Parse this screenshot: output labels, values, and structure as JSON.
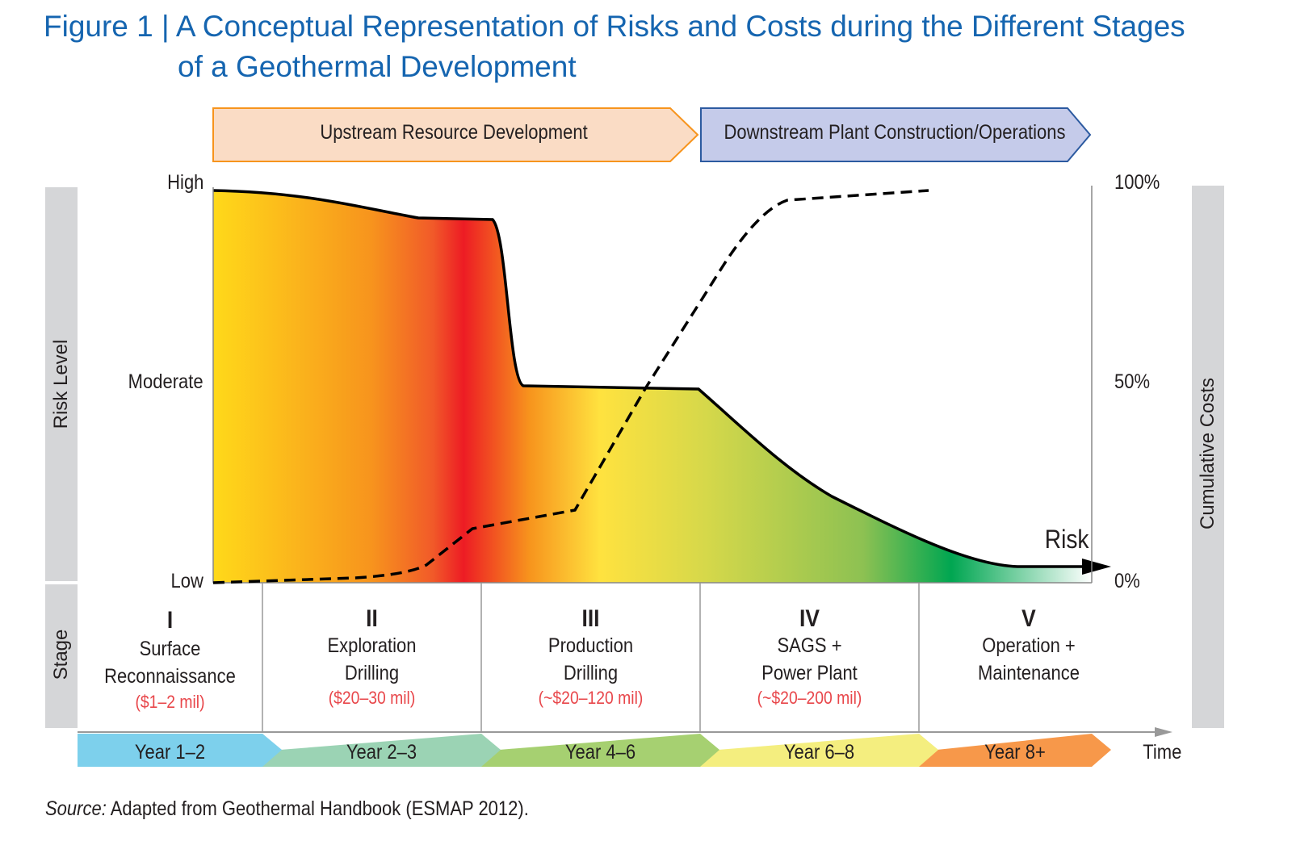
{
  "title": {
    "line1": "Figure 1 | A Conceptual Representation of Risks and Costs during the Different Stages",
    "line2": "of a Geothermal Development"
  },
  "phases": [
    {
      "label": "Upstream Resource Development",
      "fill": "#fadcc5",
      "stroke": "#f7941d"
    },
    {
      "label": "Downstream Plant Construction/Operations",
      "fill": "#c5cbea",
      "stroke": "#2c5aa0"
    }
  ],
  "left_axis": {
    "title": "Risk Level",
    "ticks": [
      "High",
      "Moderate",
      "Low"
    ]
  },
  "right_axis": {
    "title": "Cumulative Costs",
    "ticks": [
      "100%",
      "50%",
      "0%"
    ]
  },
  "risk_label": "Risk",
  "stage_label": "Stage",
  "stages": [
    {
      "numeral": "I",
      "name1": "Surface",
      "name2": "Reconnaissance",
      "cost": "($1–2 mil)"
    },
    {
      "numeral": "II",
      "name1": "Exploration",
      "name2": "Drilling",
      "cost": "($20–30 mil)"
    },
    {
      "numeral": "III",
      "name1": "Production",
      "name2": "Drilling",
      "cost": "(~$20–120 mil)"
    },
    {
      "numeral": "IV",
      "name1": "SAGS +",
      "name2": "Power Plant",
      "cost": "(~$20–200 mil)"
    },
    {
      "numeral": "V",
      "name1": "Operation +",
      "name2": "Maintenance",
      "cost": ""
    }
  ],
  "years": [
    {
      "label": "Year 1–2",
      "color": "#7dd0ec"
    },
    {
      "label": "Year 2–3",
      "color": "#9bd3b4"
    },
    {
      "label": "Year 4–6",
      "color": "#a6d071"
    },
    {
      "label": "Year 6–8",
      "color": "#f4ee7f"
    },
    {
      "label": "Year 8+",
      "color": "#f7984a"
    }
  ],
  "time_label": "Time",
  "source": {
    "prefix": "Source:",
    "text": " Adapted from Geothermal Handbook (ESMAP 2012)."
  },
  "colors": {
    "title": "#1565b0",
    "cost_text": "#e8464a",
    "side_bar": "#d5d6d8"
  }
}
